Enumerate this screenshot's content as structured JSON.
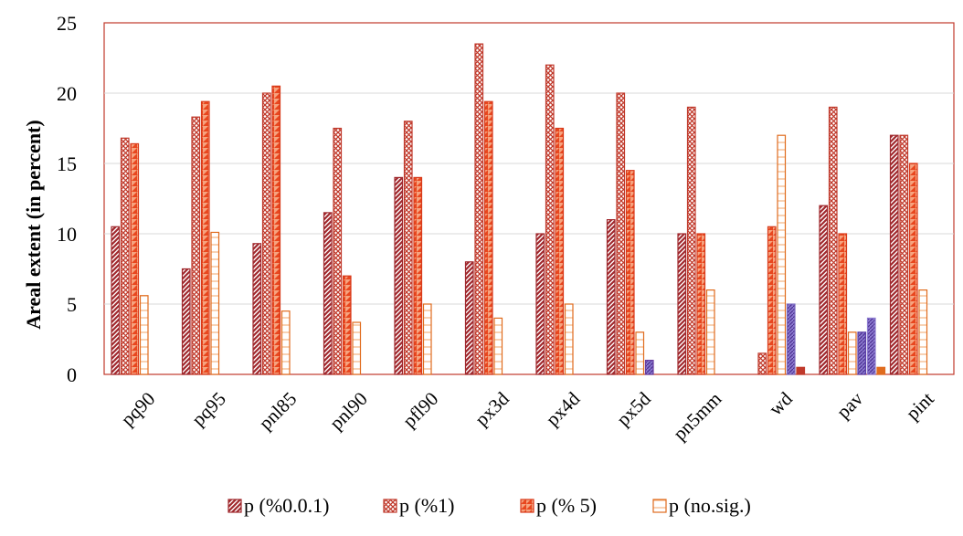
{
  "chart_data": {
    "type": "bar",
    "title": "",
    "xlabel": "",
    "ylabel": "Areal extent (in percent)",
    "ylim": [
      0,
      25
    ],
    "yticks": [
      0,
      5,
      10,
      15,
      20,
      25
    ],
    "grid": true,
    "legend_position": "bottom",
    "categories": [
      "pq90",
      "pq95",
      "pnl85",
      "pnl90",
      "pfl90",
      "px3d",
      "px4d",
      "px5d",
      "pn5mm",
      "wd",
      "pav",
      "pint"
    ],
    "series": [
      {
        "name": "p (%0.0.1)",
        "color": "#A0282D",
        "pattern": "diag",
        "values": [
          10.5,
          7.5,
          9.3,
          11.5,
          14,
          8,
          10,
          11,
          10,
          0,
          12,
          17
        ]
      },
      {
        "name": "p (%1)",
        "color": "#C0392B",
        "pattern": "cross",
        "values": [
          16.8,
          18.3,
          20,
          17.5,
          18,
          23.5,
          22,
          20,
          19,
          1.5,
          19,
          17
        ]
      },
      {
        "name": "p (% 5)",
        "color": "#E8471F",
        "pattern": "zigzag",
        "values": [
          16.4,
          19.4,
          20.5,
          7,
          14,
          19.4,
          17.5,
          14.5,
          10,
          10.5,
          10,
          15
        ]
      },
      {
        "name": "p (no.sig.)",
        "color": "#E06C1E",
        "pattern": "grid",
        "values": [
          5.6,
          10.1,
          4.5,
          3.7,
          5,
          4,
          5,
          3,
          6,
          17,
          3,
          6
        ]
      }
    ],
    "extra_bars": [
      {
        "label": "px5d",
        "value": 1,
        "color": "#6A3FA0"
      },
      {
        "label": "wd",
        "value": 5,
        "color": "#7B6BC0"
      },
      {
        "label": "wd",
        "value": 0.5,
        "color": "#C0392B"
      },
      {
        "label": "pav",
        "value": 3,
        "color": "#5B3FA8"
      },
      {
        "label": "pav",
        "value": 4,
        "color": "#8C7BD0"
      },
      {
        "label": "pav",
        "value": 0.5,
        "color": "#E06C1E"
      }
    ]
  }
}
